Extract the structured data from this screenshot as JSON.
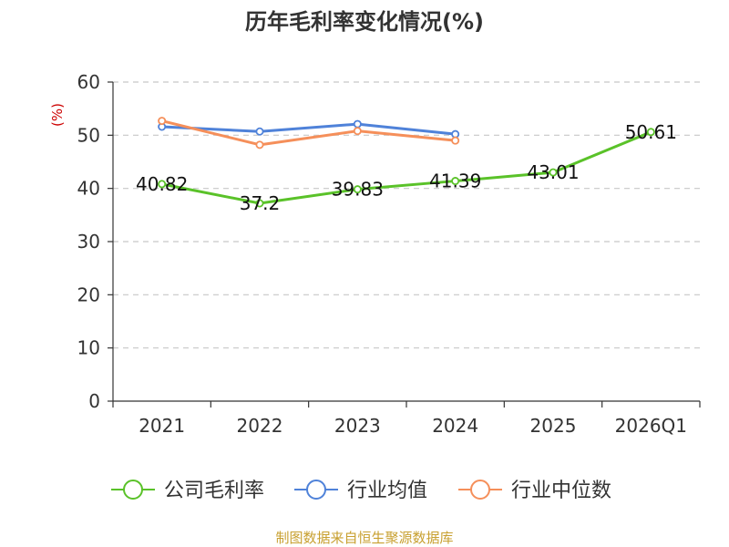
{
  "chart_data": {
    "type": "line",
    "title": "历年毛利率变化情况(%)",
    "ylabel": "(%)",
    "ylim": [
      0,
      60
    ],
    "yticks": [
      0,
      10,
      20,
      30,
      40,
      50,
      60
    ],
    "grid": true,
    "legend_position": "bottom",
    "categories": [
      "2021",
      "2022",
      "2023",
      "2024",
      "2025",
      "2026Q1"
    ],
    "series": [
      {
        "name": "公司毛利率",
        "color": "#5ac229",
        "values": [
          40.82,
          37.2,
          39.83,
          41.39,
          43.01,
          50.61
        ],
        "show_labels": true
      },
      {
        "name": "行业均值",
        "color": "#4f82d9",
        "values": [
          51.6,
          50.7,
          52.1,
          50.2,
          null,
          null
        ],
        "show_labels": false
      },
      {
        "name": "行业中位数",
        "color": "#f58f5a",
        "values": [
          52.7,
          48.2,
          50.8,
          49.0,
          null,
          null
        ],
        "show_labels": false
      }
    ],
    "source": "制图数据来自恒生聚源数据库",
    "unit_color": "#cc0000",
    "source_color": "#c8a030"
  }
}
